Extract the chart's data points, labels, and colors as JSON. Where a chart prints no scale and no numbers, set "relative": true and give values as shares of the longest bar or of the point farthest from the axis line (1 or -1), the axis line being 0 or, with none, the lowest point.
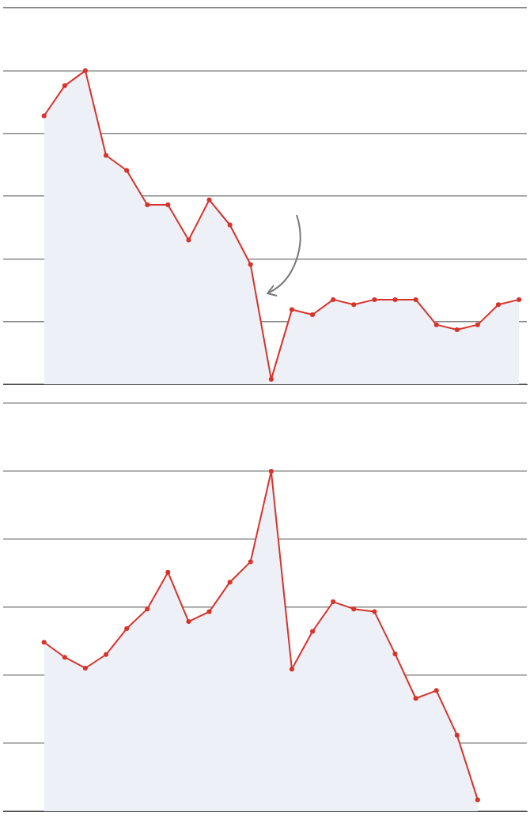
{
  "chart_data": [
    {
      "type": "area",
      "relative": true,
      "grid": "y",
      "marker": "circle",
      "categories": [
        null,
        null,
        null,
        null,
        null,
        null,
        null,
        null,
        null,
        null,
        null,
        null,
        null,
        null,
        null,
        null,
        null,
        null,
        null,
        null,
        null,
        null,
        null,
        null
      ],
      "series": [
        {
          "color": "#d7332a",
          "values": [
            0.856,
            0.952,
            1,
            0.73,
            0.682,
            0.572,
            0.572,
            0.46,
            0.588,
            0.508,
            0.382,
            0.016,
            0.238,
            0.222,
            0.27,
            0.254,
            0.27,
            0.27,
            0.27,
            0.19,
            0.174,
            0.19,
            0.254,
            0.27
          ]
        }
      ]
    },
    {
      "type": "area",
      "relative": true,
      "grid": "y",
      "marker": "circle",
      "categories": [
        null,
        null,
        null,
        null,
        null,
        null,
        null,
        null,
        null,
        null,
        null,
        null,
        null,
        null,
        null,
        null,
        null,
        null,
        null,
        null,
        null,
        null,
        null,
        null
      ],
      "series": [
        {
          "color": "#d7332a",
          "values": [
            0.497,
            0.453,
            0.421,
            0.461,
            0.537,
            0.595,
            0.703,
            0.558,
            0.587,
            0.674,
            0.734,
            1,
            0.418,
            0.529,
            0.616,
            0.595,
            0.587,
            0.463,
            0.332,
            0.355,
            0.224,
            0.034,
            null,
            null
          ]
        }
      ]
    }
  ]
}
